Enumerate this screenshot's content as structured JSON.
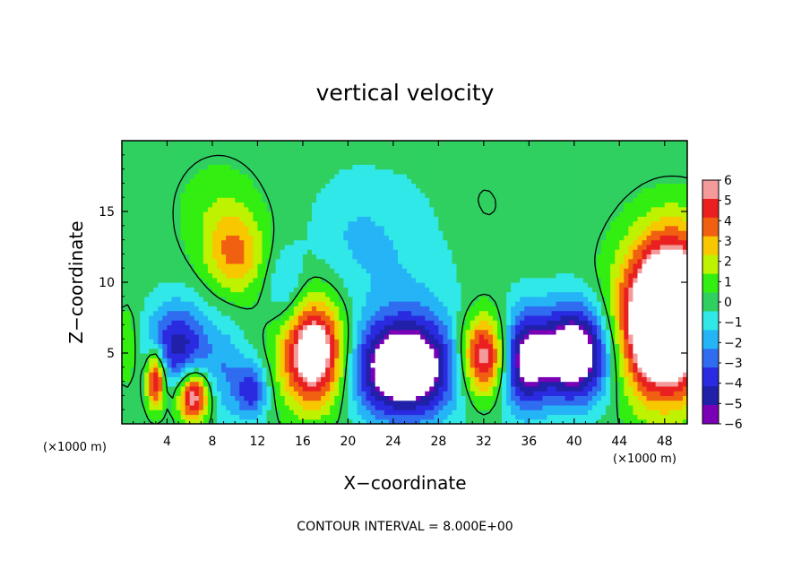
{
  "chart_data": {
    "type": "heatmap",
    "title": "vertical velocity",
    "xlabel": "X−coordinate",
    "ylabel": "Z−coordinate",
    "x_unit_left": "(×1000 m)",
    "x_unit_right": "(×1000 m)",
    "xlim": [
      0,
      50
    ],
    "ylim": [
      0,
      20
    ],
    "x_ticks": [
      "4",
      "8",
      "12",
      "16",
      "20",
      "24",
      "28",
      "32",
      "36",
      "40",
      "44",
      "48"
    ],
    "y_ticks": [
      "5",
      "10",
      "15"
    ],
    "colorbar": {
      "min": -6,
      "max": 6,
      "ticks": [
        "6",
        "5",
        "4",
        "3",
        "2",
        "1",
        "0",
        "−1",
        "−2",
        "−3",
        "−4",
        "−5",
        "−6"
      ],
      "colors": [
        "#7a00b5",
        "#2020a8",
        "#2a2ae0",
        "#2f6cf0",
        "#25b4f5",
        "#30e8e8",
        "#2fd060",
        "#33ee11",
        "#bff200",
        "#f7c800",
        "#f06010",
        "#ea2020",
        "#f59a9a"
      ]
    },
    "footer": "CONTOUR INTERVAL = 8.000E+00",
    "features": [
      {
        "x": 0.6,
        "z": 5.5,
        "w": 1.5,
        "sx": 0.8,
        "sz": 2.0
      },
      {
        "x": 3.0,
        "z": 3.2,
        "w": 7.0,
        "sx": 0.6,
        "sz": 1.4
      },
      {
        "x": 5.0,
        "z": 5.5,
        "w": -5.0,
        "sx": 2.0,
        "sz": 2.2
      },
      {
        "x": 6.3,
        "z": 2.0,
        "w": 7.0,
        "sx": 1.0,
        "sz": 1.3
      },
      {
        "x": 9.2,
        "z": 3.5,
        "w": -2.0,
        "sx": 1.2,
        "sz": 2.5
      },
      {
        "x": 11.5,
        "z": 2.4,
        "w": -4.0,
        "sx": 1.0,
        "sz": 1.5
      },
      {
        "x": 10.0,
        "z": 12.0,
        "w": 3.5,
        "sx": 1.8,
        "sz": 2.0
      },
      {
        "x": 8.5,
        "z": 15.0,
        "w": 1.2,
        "sx": 2.5,
        "sz": 2.5
      },
      {
        "x": 17.0,
        "z": 5.0,
        "w": 8.5,
        "sx": 2.0,
        "sz": 2.6
      },
      {
        "x": 14.5,
        "z": 9.5,
        "w": -2.0,
        "sx": 1.2,
        "sz": 2.0
      },
      {
        "x": 25.0,
        "z": 4.0,
        "w": -9.0,
        "sx": 3.2,
        "sz": 2.5
      },
      {
        "x": 25.0,
        "z": 12.0,
        "w": -1.3,
        "sx": 4.0,
        "sz": 4.0
      },
      {
        "x": 32.0,
        "z": 4.8,
        "w": 7.0,
        "sx": 1.5,
        "sz": 2.0
      },
      {
        "x": 35.5,
        "z": 4.5,
        "w": -6.0,
        "sx": 1.5,
        "sz": 2.5
      },
      {
        "x": 40.0,
        "z": 5.0,
        "w": -8.5,
        "sx": 2.3,
        "sz": 2.4
      },
      {
        "x": 48.0,
        "z": 7.0,
        "w": 12.0,
        "sx": 2.8,
        "sz": 3.5
      },
      {
        "x": 49.0,
        "z": 12.0,
        "w": 2.5,
        "sx": 2.5,
        "sz": 2.5
      },
      {
        "x": 20.0,
        "z": 13.5,
        "w": -1.0,
        "sx": 2.5,
        "sz": 3.0
      },
      {
        "x": 31.0,
        "z": 15.0,
        "w": 0.6,
        "sx": 3.0,
        "sz": 3.0
      }
    ]
  }
}
